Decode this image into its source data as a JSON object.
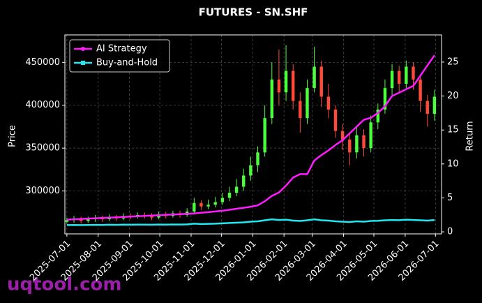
{
  "chart_data": {
    "type": "candlestick",
    "title": "FUTURES - SN.SHF",
    "x": [
      "2025-07-01",
      "2025-07-08",
      "2025-07-15",
      "2025-07-22",
      "2025-07-29",
      "2025-08-05",
      "2025-08-12",
      "2025-08-19",
      "2025-08-26",
      "2025-09-02",
      "2025-09-09",
      "2025-09-16",
      "2025-09-23",
      "2025-09-30",
      "2025-10-07",
      "2025-10-14",
      "2025-10-21",
      "2025-10-28",
      "2025-11-04",
      "2025-11-11",
      "2025-11-18",
      "2025-11-25",
      "2025-12-02",
      "2025-12-09",
      "2025-12-16",
      "2025-12-23",
      "2025-12-30",
      "2026-01-06",
      "2026-01-13",
      "2026-01-20",
      "2026-01-27",
      "2026-02-03",
      "2026-02-10",
      "2026-02-17",
      "2026-02-24",
      "2026-03-03",
      "2026-03-10",
      "2026-03-17",
      "2026-03-24",
      "2026-03-31",
      "2026-04-07",
      "2026-04-14",
      "2026-04-21",
      "2026-04-28",
      "2026-05-05",
      "2026-05-12",
      "2026-05-19",
      "2026-05-26",
      "2026-06-02",
      "2026-06-09",
      "2026-06-16",
      "2026-06-23",
      "2026-06-30"
    ],
    "open": [
      264000,
      266000,
      268000,
      265000,
      267000,
      269000,
      267000,
      270000,
      268000,
      271000,
      270000,
      272000,
      271000,
      269000,
      273000,
      271000,
      274000,
      272000,
      276000,
      286000,
      282000,
      284000,
      287000,
      292000,
      298000,
      305000,
      318000,
      330000,
      345000,
      385000,
      430000,
      415000,
      440000,
      405000,
      385000,
      420000,
      445000,
      410000,
      395000,
      370000,
      360000,
      345000,
      365000,
      350000,
      380000,
      395000,
      420000,
      440000,
      425000,
      445000,
      430000,
      405000,
      390000
    ],
    "high": [
      269000,
      271000,
      270000,
      270000,
      272000,
      271000,
      273000,
      272000,
      274000,
      274000,
      275000,
      275000,
      274000,
      276000,
      276000,
      277000,
      277000,
      280000,
      292000,
      289000,
      290000,
      293000,
      298000,
      305000,
      314000,
      326000,
      340000,
      352000,
      400000,
      450000,
      465000,
      470000,
      448000,
      415000,
      430000,
      468000,
      452000,
      425000,
      400000,
      378000,
      368000,
      375000,
      372000,
      388000,
      402000,
      430000,
      448000,
      446000,
      452000,
      450000,
      435000,
      412000,
      418000
    ],
    "low": [
      262000,
      263000,
      262000,
      263000,
      264000,
      264000,
      265000,
      265000,
      266000,
      267000,
      268000,
      268000,
      266000,
      267000,
      268000,
      269000,
      269000,
      270000,
      274000,
      278000,
      279000,
      281000,
      284000,
      288000,
      294000,
      300000,
      312000,
      322000,
      340000,
      378000,
      400000,
      405000,
      395000,
      368000,
      378000,
      415000,
      398000,
      385000,
      362000,
      348000,
      330000,
      338000,
      340000,
      345000,
      372000,
      390000,
      412000,
      415000,
      420000,
      418000,
      392000,
      375000,
      382000
    ],
    "close": [
      266000,
      268000,
      265000,
      267000,
      269000,
      267000,
      270000,
      268000,
      271000,
      270000,
      272000,
      271000,
      269000,
      273000,
      271000,
      274000,
      272000,
      276000,
      286000,
      282000,
      284000,
      287000,
      292000,
      298000,
      305000,
      318000,
      330000,
      345000,
      385000,
      430000,
      415000,
      440000,
      405000,
      385000,
      420000,
      445000,
      410000,
      395000,
      370000,
      360000,
      345000,
      365000,
      350000,
      380000,
      395000,
      420000,
      440000,
      425000,
      445000,
      430000,
      405000,
      390000,
      410000
    ],
    "up_color": "#4cff3c",
    "down_color": "#ff4a3a",
    "series": [
      {
        "name": "AI Strategy",
        "color": "#ff1aff",
        "axis": "y2",
        "values": [
          1.8,
          1.85,
          1.9,
          1.95,
          2.0,
          2.05,
          2.1,
          2.15,
          2.2,
          2.25,
          2.3,
          2.35,
          2.4,
          2.45,
          2.5,
          2.55,
          2.6,
          2.65,
          2.7,
          2.8,
          2.9,
          3.0,
          3.1,
          3.25,
          3.4,
          3.55,
          3.7,
          3.9,
          4.5,
          5.3,
          5.8,
          6.8,
          8.0,
          8.5,
          8.5,
          10.5,
          11.3,
          12.0,
          12.8,
          13.5,
          14.5,
          15.5,
          16.5,
          16.8,
          17.5,
          18.5,
          20.0,
          20.5,
          21.0,
          21.5,
          23.0,
          24.5,
          26.0
        ]
      },
      {
        "name": "Buy-and-Hold",
        "color": "#1ee8f0",
        "axis": "y2",
        "values": [
          1.0,
          1.02,
          1.0,
          1.01,
          1.03,
          1.02,
          1.05,
          1.03,
          1.06,
          1.05,
          1.07,
          1.06,
          1.05,
          1.08,
          1.07,
          1.09,
          1.08,
          1.1,
          1.2,
          1.15,
          1.18,
          1.2,
          1.25,
          1.3,
          1.35,
          1.4,
          1.5,
          1.55,
          1.7,
          1.85,
          1.75,
          1.8,
          1.65,
          1.6,
          1.7,
          1.85,
          1.7,
          1.65,
          1.55,
          1.5,
          1.45,
          1.55,
          1.5,
          1.6,
          1.62,
          1.7,
          1.75,
          1.72,
          1.8,
          1.75,
          1.7,
          1.65,
          1.75
        ]
      }
    ],
    "xlim": [
      "2025-06-29",
      "2026-07-07"
    ],
    "xticks": [
      "2025-07-01",
      "2025-08-01",
      "2025-09-01",
      "2025-10-01",
      "2025-11-01",
      "2025-12-01",
      "2026-01-01",
      "2026-02-01",
      "2026-03-01",
      "2026-04-01",
      "2026-05-01",
      "2026-06-01",
      "2026-07-01"
    ],
    "ylim": [
      250000,
      482000
    ],
    "yticks": [
      300000,
      350000,
      400000,
      450000
    ],
    "y2lim": [
      -0.3,
      29
    ],
    "y2ticks": [
      0,
      5,
      10,
      15,
      20,
      25
    ],
    "ylabel": "Price",
    "y2label": "Return",
    "grid": true,
    "legend": "upper left"
  },
  "watermark": "uqtool.com"
}
